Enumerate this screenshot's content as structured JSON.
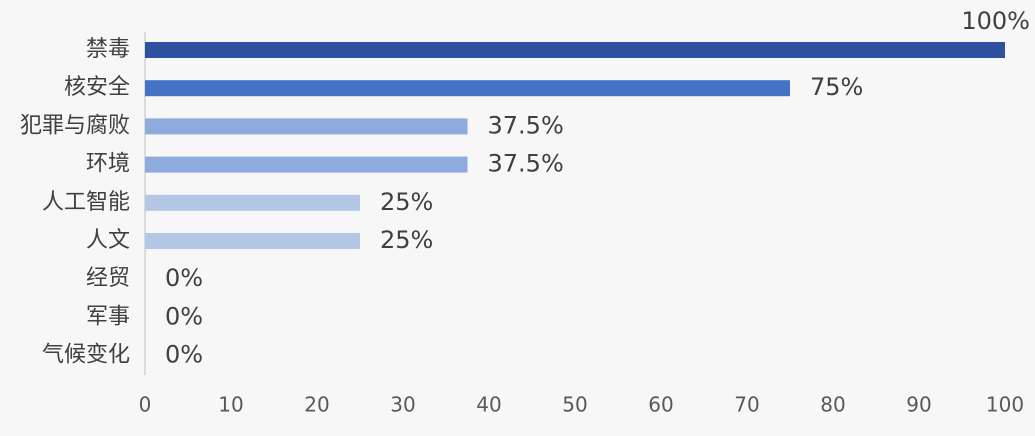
{
  "chart_data": {
    "type": "hbar",
    "categories": [
      "禁毒",
      "核安全",
      "犯罪与腐败",
      "环境",
      "人工智能",
      "人文",
      "经贸",
      "军事",
      "气候变化"
    ],
    "values": [
      100,
      75,
      37.5,
      37.5,
      25,
      25,
      0,
      0,
      0
    ],
    "value_labels": [
      "100%",
      "75%",
      "37.5%",
      "37.5%",
      "25%",
      "25%",
      "0%",
      "0%",
      "0%"
    ],
    "colors": [
      "#2f52a0",
      "#4472c4",
      "#8faadc",
      "#8faadc",
      "#b4c7e7",
      "#b4c7e7",
      "#b4c7e7",
      "#b4c7e7",
      "#b4c7e7"
    ],
    "xlim": [
      0,
      100
    ],
    "xticks": [
      0,
      10,
      20,
      30,
      40,
      50,
      60,
      70,
      80,
      90,
      100
    ],
    "grid": false
  }
}
